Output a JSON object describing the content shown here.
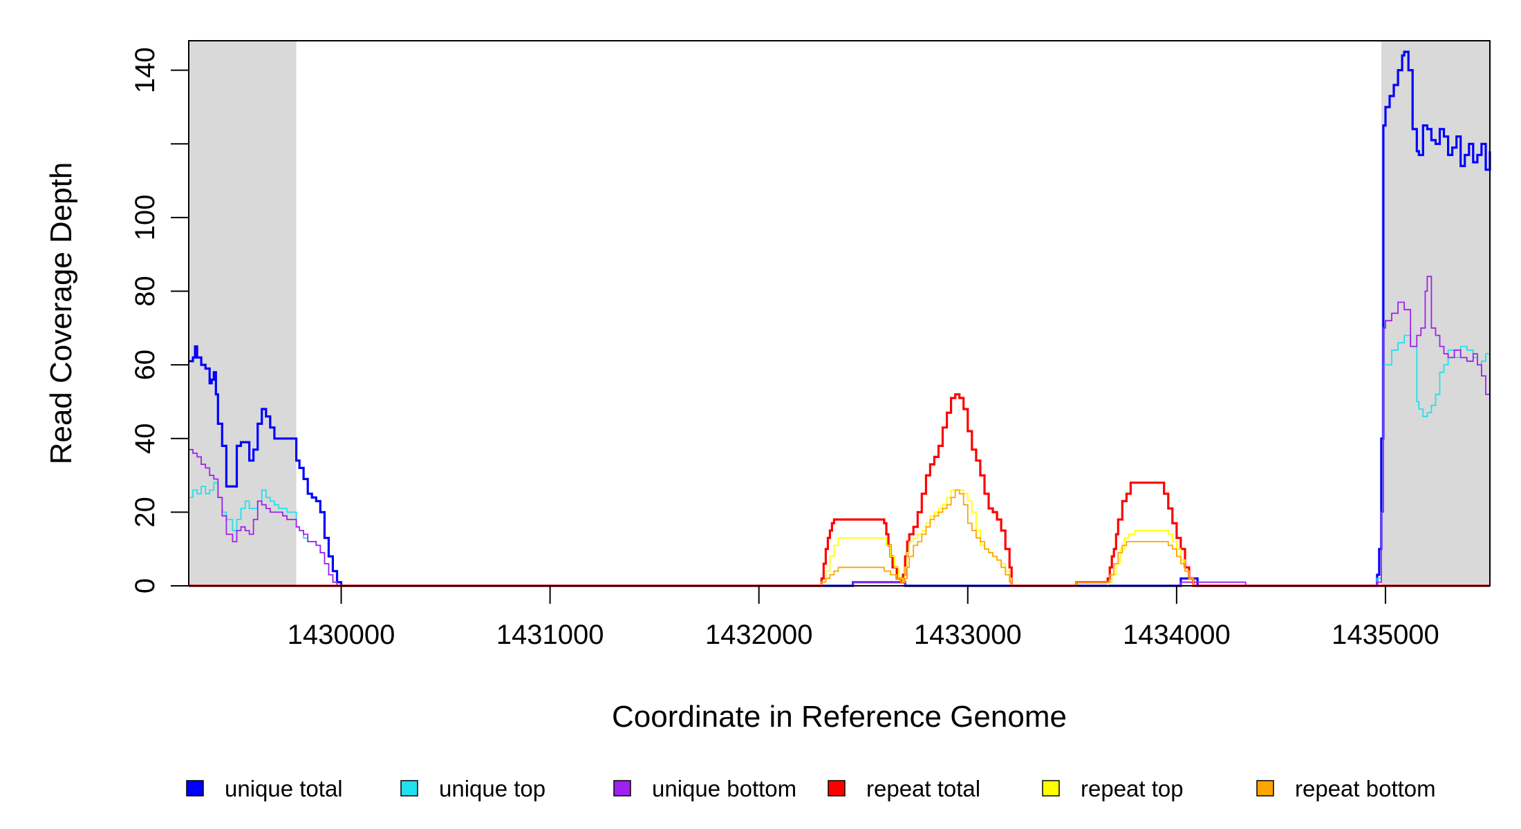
{
  "chart_data": {
    "type": "line",
    "title": "",
    "xlabel": "Coordinate in Reference Genome",
    "ylabel": "Read Coverage Depth",
    "xlim": [
      1429270,
      1435500
    ],
    "ylim": [
      0,
      148
    ],
    "x_ticks": [
      {
        "value": 1430000,
        "label": "1430000"
      },
      {
        "value": 1431000,
        "label": "1431000"
      },
      {
        "value": 1432000,
        "label": "1432000"
      },
      {
        "value": 1433000,
        "label": "1433000"
      },
      {
        "value": 1434000,
        "label": "1434000"
      },
      {
        "value": 1435000,
        "label": "1435000"
      }
    ],
    "y_ticks": [
      {
        "value": 0,
        "label": "0"
      },
      {
        "value": 20,
        "label": "20"
      },
      {
        "value": 40,
        "label": "40"
      },
      {
        "value": 60,
        "label": "60"
      },
      {
        "value": 80,
        "label": "80"
      },
      {
        "value": 100,
        "label": "100"
      },
      {
        "value": 120,
        "label": ""
      },
      {
        "value": 140,
        "label": "140"
      }
    ],
    "grid": false,
    "legend_position": "bottom",
    "shaded_regions": [
      {
        "x_start": 1429270,
        "x_end": 1429785,
        "color": "#d9d9d9"
      },
      {
        "x_start": 1434980,
        "x_end": 1435500,
        "color": "#d9d9d9"
      }
    ],
    "series": [
      {
        "name": "unique total",
        "color": "#0000ff",
        "stroke": "bold",
        "x": [
          1429270,
          1429290,
          1429300,
          1429310,
          1429330,
          1429350,
          1429370,
          1429380,
          1429390,
          1429400,
          1429410,
          1429430,
          1429450,
          1429480,
          1429500,
          1429520,
          1429540,
          1429560,
          1429580,
          1429600,
          1429620,
          1429640,
          1429660,
          1429680,
          1429700,
          1429720,
          1429740,
          1429785,
          1429800,
          1429820,
          1429840,
          1429860,
          1429880,
          1429900,
          1429920,
          1429940,
          1429960,
          1429980,
          1430000,
          1432000,
          1432400,
          1432450,
          1432670,
          1432700,
          1433000,
          1433900,
          1434000,
          1434020,
          1434060,
          1434100,
          1434300,
          1434330,
          1434500,
          1434950,
          1434960,
          1434970,
          1434980,
          1434990,
          1435000,
          1435020,
          1435040,
          1435060,
          1435080,
          1435090,
          1435110,
          1435130,
          1435150,
          1435160,
          1435180,
          1435200,
          1435220,
          1435240,
          1435260,
          1435280,
          1435300,
          1435320,
          1435340,
          1435360,
          1435380,
          1435400,
          1435420,
          1435440,
          1435460,
          1435480,
          1435500
        ],
        "y": [
          61,
          62,
          65,
          62,
          60,
          59,
          55,
          56,
          58,
          52,
          44,
          38,
          27,
          27,
          38,
          39,
          39,
          34,
          37,
          44,
          48,
          46,
          43,
          40,
          40,
          40,
          40,
          34,
          32,
          29,
          25,
          24,
          23,
          20,
          13,
          8,
          4,
          1,
          0,
          0,
          0,
          1,
          1,
          0,
          0,
          0,
          0,
          2,
          2,
          0,
          0,
          0,
          0,
          0,
          3,
          10,
          40,
          125,
          130,
          133,
          136,
          140,
          144,
          145,
          140,
          124,
          118,
          117,
          125,
          124,
          121,
          120,
          124,
          122,
          117,
          119,
          122,
          114,
          117,
          120,
          115,
          117,
          120,
          113,
          118
        ]
      },
      {
        "name": "unique top",
        "color": "#22e0ee",
        "stroke": "thin",
        "x": [
          1429270,
          1429290,
          1429310,
          1429330,
          1429350,
          1429370,
          1429390,
          1429410,
          1429430,
          1429450,
          1429480,
          1429500,
          1429520,
          1429540,
          1429560,
          1429580,
          1429600,
          1429620,
          1429640,
          1429660,
          1429680,
          1429700,
          1429720,
          1429740,
          1429785,
          1429800,
          1429820,
          1429840,
          1429860,
          1429880,
          1429900,
          1429920,
          1429940,
          1429960,
          1429980,
          1430000,
          1432000,
          1432400,
          1432450,
          1432670,
          1432700,
          1433000,
          1433900,
          1434000,
          1434950,
          1434960,
          1434980,
          1434990,
          1435000,
          1435030,
          1435060,
          1435090,
          1435120,
          1435150,
          1435160,
          1435180,
          1435200,
          1435220,
          1435240,
          1435260,
          1435280,
          1435300,
          1435330,
          1435360,
          1435390,
          1435420,
          1435440,
          1435460,
          1435480,
          1435500
        ],
        "y": [
          24,
          26,
          25,
          27,
          25,
          26,
          28,
          24,
          20,
          18,
          15,
          18,
          21,
          23,
          21,
          21,
          23,
          26,
          24,
          23,
          22,
          21,
          21,
          20,
          16,
          15,
          13,
          12,
          12,
          11,
          9,
          6,
          3,
          1,
          0,
          0,
          0,
          0,
          1,
          1,
          0,
          0,
          0,
          0,
          0,
          2,
          20,
          60,
          60,
          64,
          66,
          68,
          65,
          50,
          48,
          46,
          47,
          49,
          52,
          58,
          60,
          64,
          62,
          65,
          64,
          62,
          60,
          61,
          63,
          75
        ]
      },
      {
        "name": "unique bottom",
        "color": "#a020f0",
        "stroke": "thin",
        "x": [
          1429270,
          1429290,
          1429310,
          1429330,
          1429350,
          1429370,
          1429390,
          1429410,
          1429430,
          1429450,
          1429480,
          1429500,
          1429520,
          1429540,
          1429560,
          1429580,
          1429600,
          1429620,
          1429640,
          1429660,
          1429680,
          1429700,
          1429720,
          1429740,
          1429785,
          1429800,
          1429820,
          1429840,
          1429860,
          1429880,
          1429900,
          1429920,
          1429940,
          1429960,
          1429980,
          1430000,
          1432000,
          1432400,
          1432450,
          1432670,
          1432700,
          1433000,
          1433900,
          1434000,
          1434020,
          1434060,
          1434100,
          1434300,
          1434330,
          1434500,
          1434950,
          1434960,
          1434980,
          1434990,
          1435000,
          1435030,
          1435060,
          1435090,
          1435120,
          1435150,
          1435170,
          1435190,
          1435200,
          1435220,
          1435240,
          1435260,
          1435280,
          1435300,
          1435330,
          1435360,
          1435390,
          1435420,
          1435440,
          1435460,
          1435480,
          1435500
        ],
        "y": [
          37,
          36,
          35,
          33,
          32,
          30,
          29,
          24,
          19,
          14,
          12,
          15,
          16,
          15,
          14,
          18,
          23,
          22,
          21,
          20,
          20,
          20,
          19,
          18,
          16,
          15,
          14,
          12,
          12,
          11,
          9,
          6,
          3,
          1,
          0,
          0,
          0,
          0,
          1,
          1,
          0,
          0,
          0,
          0,
          1,
          1,
          1,
          1,
          0,
          0,
          0,
          1,
          20,
          70,
          72,
          74,
          77,
          75,
          65,
          68,
          70,
          80,
          84,
          70,
          68,
          65,
          63,
          62,
          64,
          62,
          61,
          63,
          60,
          57,
          52,
          42
        ]
      },
      {
        "name": "repeat total",
        "color": "#ff0000",
        "stroke": "bold",
        "x": [
          1429270,
          1432290,
          1432300,
          1432310,
          1432320,
          1432330,
          1432340,
          1432350,
          1432360,
          1432380,
          1432400,
          1432450,
          1432500,
          1432550,
          1432580,
          1432600,
          1432610,
          1432620,
          1432630,
          1432640,
          1432660,
          1432680,
          1432690,
          1432700,
          1432710,
          1432720,
          1432740,
          1432760,
          1432780,
          1432800,
          1432820,
          1432840,
          1432860,
          1432880,
          1432900,
          1432920,
          1432940,
          1432960,
          1432980,
          1433000,
          1433020,
          1433040,
          1433060,
          1433080,
          1433100,
          1433120,
          1433140,
          1433160,
          1433180,
          1433200,
          1433210,
          1433400,
          1433480,
          1433520,
          1433600,
          1433660,
          1433670,
          1433680,
          1433690,
          1433700,
          1433710,
          1433720,
          1433740,
          1433760,
          1433780,
          1433800,
          1433820,
          1433860,
          1433900,
          1433920,
          1433940,
          1433960,
          1433980,
          1434000,
          1434020,
          1434040,
          1434060,
          1434080,
          1435500
        ],
        "y": [
          0,
          0,
          2,
          6,
          10,
          13,
          15,
          17,
          18,
          18,
          18,
          18,
          18,
          18,
          18,
          17,
          14,
          11,
          8,
          5,
          2,
          1,
          3,
          8,
          12,
          14,
          16,
          20,
          25,
          30,
          33,
          35,
          38,
          43,
          47,
          51,
          52,
          51,
          48,
          42,
          37,
          34,
          30,
          25,
          21,
          20,
          18,
          15,
          10,
          5,
          0,
          0,
          0,
          1,
          1,
          1,
          2,
          5,
          8,
          10,
          14,
          18,
          23,
          25,
          28,
          28,
          28,
          28,
          28,
          28,
          25,
          21,
          17,
          13,
          10,
          5,
          2,
          0,
          0
        ]
      },
      {
        "name": "repeat top",
        "color": "#ffff00",
        "stroke": "thin",
        "x": [
          1429270,
          1432290,
          1432300,
          1432320,
          1432340,
          1432360,
          1432380,
          1432400,
          1432450,
          1432500,
          1432550,
          1432590,
          1432610,
          1432630,
          1432650,
          1432670,
          1432690,
          1432700,
          1432710,
          1432720,
          1432740,
          1432760,
          1432780,
          1432800,
          1432820,
          1432840,
          1432860,
          1432880,
          1432900,
          1432920,
          1432940,
          1432960,
          1432980,
          1433000,
          1433020,
          1433040,
          1433060,
          1433080,
          1433100,
          1433120,
          1433140,
          1433160,
          1433180,
          1433200,
          1433210,
          1433660,
          1433670,
          1433690,
          1433710,
          1433730,
          1433750,
          1433770,
          1433800,
          1433850,
          1433900,
          1433940,
          1433960,
          1433980,
          1434000,
          1434020,
          1434040,
          1434060,
          1434080,
          1435500
        ],
        "y": [
          0,
          0,
          1,
          4,
          8,
          11,
          13,
          13,
          13,
          13,
          13,
          13,
          11,
          8,
          5,
          2,
          1,
          5,
          9,
          12,
          13,
          14,
          15,
          17,
          19,
          20,
          21,
          22,
          24,
          26,
          26,
          26,
          25,
          23,
          20,
          15,
          11,
          10,
          9,
          8,
          7,
          6,
          4,
          2,
          0,
          0,
          1,
          3,
          6,
          10,
          13,
          14,
          15,
          15,
          15,
          15,
          14,
          12,
          10,
          7,
          4,
          2,
          0,
          0
        ]
      },
      {
        "name": "repeat bottom",
        "color": "#ffa500",
        "stroke": "thin",
        "x": [
          1429270,
          1432290,
          1432300,
          1432320,
          1432340,
          1432360,
          1432380,
          1432400,
          1432450,
          1432500,
          1432550,
          1432580,
          1432600,
          1432630,
          1432660,
          1432680,
          1432700,
          1432710,
          1432720,
          1432740,
          1432760,
          1432780,
          1432800,
          1432820,
          1432840,
          1432860,
          1432880,
          1432900,
          1432920,
          1432940,
          1432960,
          1432980,
          1433000,
          1433020,
          1433040,
          1433060,
          1433080,
          1433100,
          1433120,
          1433140,
          1433160,
          1433180,
          1433200,
          1433210,
          1433400,
          1433480,
          1433520,
          1433600,
          1433660,
          1433680,
          1433700,
          1433720,
          1433740,
          1433760,
          1433800,
          1433850,
          1433900,
          1433940,
          1433960,
          1433980,
          1434000,
          1434020,
          1434040,
          1434060,
          1434080,
          1435500
        ],
        "y": [
          0,
          0,
          1,
          2,
          3,
          4,
          5,
          5,
          5,
          5,
          5,
          5,
          4,
          3,
          2,
          1,
          2,
          5,
          8,
          11,
          12,
          14,
          16,
          18,
          19,
          20,
          21,
          22,
          24,
          26,
          25,
          22,
          17,
          15,
          13,
          12,
          10,
          9,
          8,
          7,
          5,
          3,
          1,
          0,
          0,
          0,
          1,
          1,
          1,
          3,
          6,
          9,
          11,
          12,
          12,
          12,
          12,
          12,
          11,
          10,
          8,
          6,
          4,
          2,
          0,
          0
        ]
      }
    ]
  }
}
